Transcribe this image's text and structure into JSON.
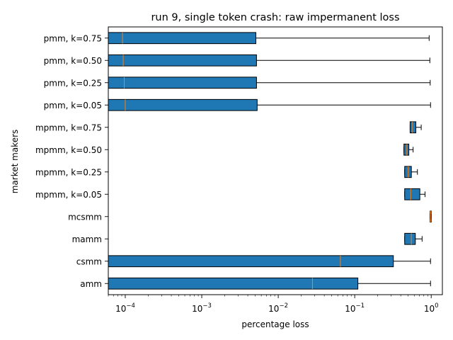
{
  "chart_data": {
    "type": "boxplot",
    "orientation": "horizontal",
    "title": "run 9, single token crash: raw impermanent loss",
    "xlabel": "percentage loss",
    "ylabel": "market makers",
    "xscale": "log",
    "xlim": [
      6e-05,
      1.4
    ],
    "xticks": [
      {
        "value": 0.0001,
        "base": "10",
        "exp": "−4"
      },
      {
        "value": 0.001,
        "base": "10",
        "exp": "−3"
      },
      {
        "value": 0.01,
        "base": "10",
        "exp": "−2"
      },
      {
        "value": 0.1,
        "base": "10",
        "exp": "−1"
      },
      {
        "value": 1,
        "base": "10",
        "exp": "0"
      }
    ],
    "box_color": "#1f77b4",
    "median_color": "#ff7f0e",
    "grid": false,
    "series": [
      {
        "name": "pmm, k=0.75",
        "whislo": 6e-05,
        "q1": 6e-05,
        "med": 9.2e-05,
        "q3": 0.0051,
        "whishi": 0.94
      },
      {
        "name": "pmm, k=0.50",
        "whislo": 6e-05,
        "q1": 6e-05,
        "med": 9.4e-05,
        "q3": 0.0052,
        "whishi": 0.96
      },
      {
        "name": "pmm, k=0.25",
        "whislo": 6e-05,
        "q1": 6e-05,
        "med": 9.7e-05,
        "q3": 0.0052,
        "whishi": 0.97
      },
      {
        "name": "pmm, k=0.05",
        "whislo": 6e-05,
        "q1": 6e-05,
        "med": 0.0001,
        "q3": 0.0053,
        "whishi": 0.98
      },
      {
        "name": "mpmm, k=0.75",
        "whislo": 0.53,
        "q1": 0.53,
        "med": 0.57,
        "q3": 0.63,
        "whishi": 0.74
      },
      {
        "name": "mpmm, k=0.50",
        "whislo": 0.44,
        "q1": 0.44,
        "med": 0.48,
        "q3": 0.51,
        "whishi": 0.58
      },
      {
        "name": "mpmm, k=0.25",
        "whislo": 0.45,
        "q1": 0.45,
        "med": 0.5,
        "q3": 0.55,
        "whishi": 0.66
      },
      {
        "name": "mpmm, k=0.05",
        "whislo": 0.45,
        "q1": 0.45,
        "med": 0.54,
        "q3": 0.71,
        "whishi": 0.83
      },
      {
        "name": "mcsmm",
        "whislo": 0.97,
        "q1": 0.97,
        "med": 0.985,
        "q3": 1.0,
        "whishi": 1.0
      },
      {
        "name": "mamm",
        "whislo": 0.45,
        "q1": 0.45,
        "med": 0.55,
        "q3": 0.62,
        "whishi": 0.76
      },
      {
        "name": "csmm",
        "whislo": 6e-05,
        "q1": 6e-05,
        "med": 0.065,
        "q3": 0.32,
        "whishi": 0.98
      },
      {
        "name": "amm",
        "whislo": 6e-05,
        "q1": 6e-05,
        "med": 0.028,
        "q3": 0.11,
        "whishi": 0.98
      }
    ]
  }
}
